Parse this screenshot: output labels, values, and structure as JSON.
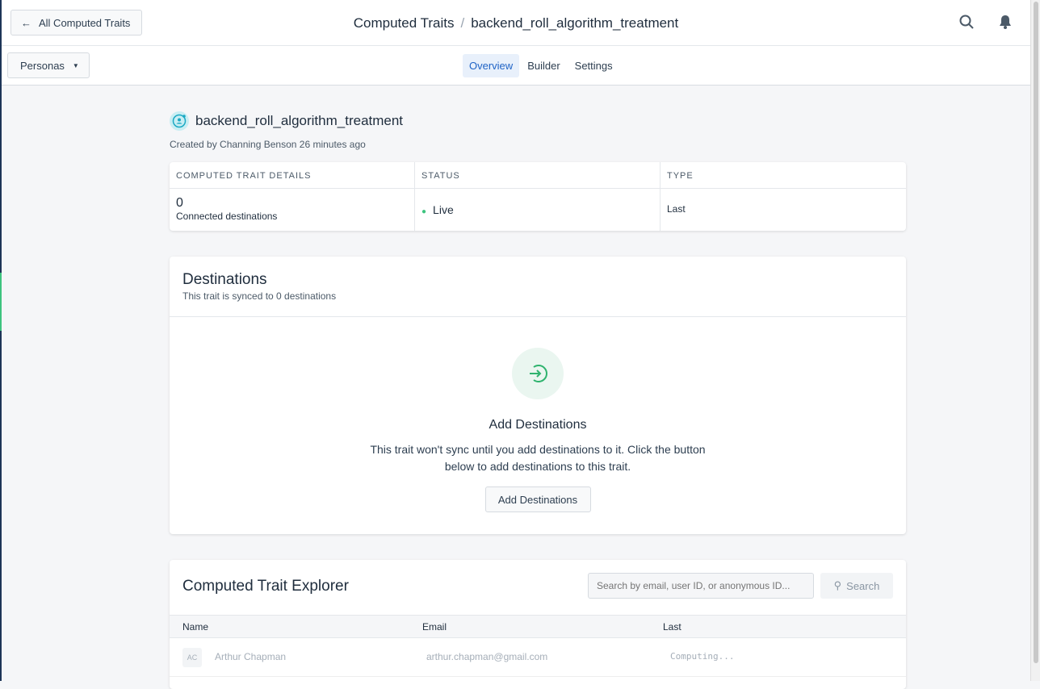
{
  "header": {
    "back_label": "All Computed Traits",
    "breadcrumb_root": "Computed Traits",
    "breadcrumb_current": "backend_roll_algorithm_treatment"
  },
  "subnav": {
    "workspace": "Personas",
    "tabs": [
      {
        "label": "Overview",
        "active": true
      },
      {
        "label": "Builder"
      },
      {
        "label": "Settings"
      }
    ]
  },
  "trait": {
    "name": "backend_roll_algorithm_treatment",
    "meta": "Created by Channing Benson 26 minutes ago"
  },
  "details": {
    "headers": [
      "COMPUTED TRAIT DETAILS",
      "STATUS",
      "TYPE"
    ],
    "count": "0",
    "count_label": "Connected destinations",
    "status": "Live",
    "status_color": "#3ec47f",
    "type": "Last"
  },
  "destinations": {
    "title": "Destinations",
    "subtitle": "This trait is synced to 0 destinations",
    "empty_title": "Add Destinations",
    "empty_text": "This trait won't sync until you add destinations to it. Click the button below to add destinations to this trait.",
    "button": "Add Destinations"
  },
  "explorer": {
    "title": "Computed Trait Explorer",
    "search_placeholder": "Search by email, user ID, or anonymous ID...",
    "search_button": "Search",
    "columns": [
      "Name",
      "Email",
      "Last"
    ],
    "rows": [
      {
        "initials": "AC",
        "name": "Arthur Chapman",
        "email": "arthur.chapman@gmail.com",
        "last": "Computing..."
      }
    ]
  }
}
